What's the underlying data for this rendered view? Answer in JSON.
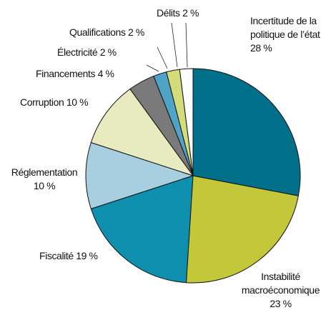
{
  "chart_data": {
    "type": "pie",
    "categories": [
      "Incertitude de la politique de l’état",
      "Instabilité macroéconomique",
      "Fiscalité",
      "Réglementation",
      "Corruption",
      "Financements",
      "Électricité",
      "Qualifications",
      "Délits"
    ],
    "values": [
      28,
      23,
      19,
      10,
      10,
      4,
      2,
      2,
      2
    ],
    "value_labels": [
      "28 %",
      "23 %",
      "19 %",
      "10 %",
      "10 %",
      "4 %",
      "2 %",
      "2 %",
      "2 %"
    ],
    "colors": [
      "#00708a",
      "#c3c83a",
      "#0e8fae",
      "#a8cfdf",
      "#e8ebc0",
      "#7a7a7a",
      "#4fa3c7",
      "#d4dc7a",
      "#ffffff"
    ]
  }
}
